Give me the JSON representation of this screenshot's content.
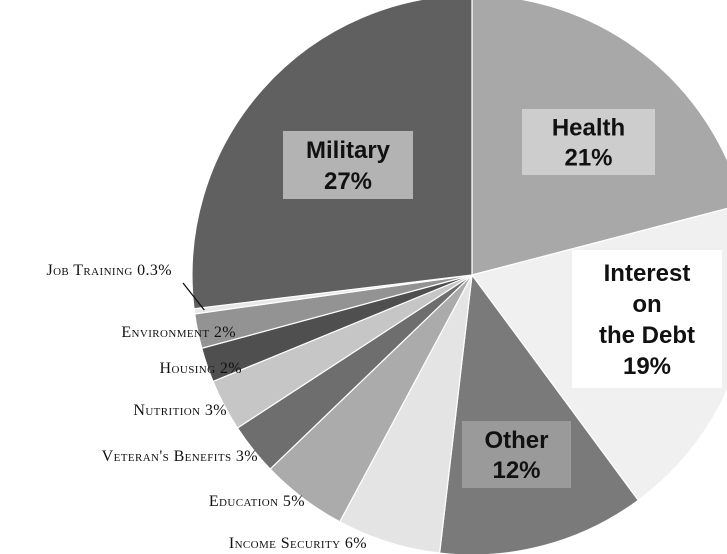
{
  "chart_data": {
    "type": "pie",
    "title": "",
    "slices": [
      {
        "category": "Health",
        "value_label": "21%",
        "value": 21,
        "color": "#a8a8a8"
      },
      {
        "category": "Interest on the Debt",
        "value_label": "19%",
        "value": 19,
        "color": "#f0f0f0"
      },
      {
        "category": "Other",
        "value_label": "12%",
        "value": 12,
        "color": "#7a7a7a"
      },
      {
        "category": "Income Security",
        "value_label": "6%",
        "value": 6,
        "color": "#e4e4e4"
      },
      {
        "category": "Education",
        "value_label": "5%",
        "value": 5,
        "color": "#ababab"
      },
      {
        "category": "Veteran's Benefits",
        "value_label": "3%",
        "value": 3,
        "color": "#6e6e6e"
      },
      {
        "category": "Nutrition",
        "value_label": "3%",
        "value": 3,
        "color": "#c6c6c6"
      },
      {
        "category": "Housing",
        "value_label": "2%",
        "value": 2,
        "color": "#4f4f4f"
      },
      {
        "category": "Environment",
        "value_label": "2%",
        "value": 2,
        "color": "#939393"
      },
      {
        "category": "Job Training",
        "value_label": "0.3%",
        "value": 0.3,
        "color": "#e8e8e8"
      },
      {
        "category": "Military",
        "value_label": "27%",
        "value": 27,
        "color": "#606060"
      }
    ],
    "inner_labels": [
      {
        "lines": [
          "Health",
          "21%"
        ],
        "box_color": "#cdcdcd",
        "text_color": "#111111"
      },
      {
        "lines": [
          "Interest",
          "on",
          "the Debt",
          "19%"
        ],
        "box_color": "#ffffff",
        "text_color": "#111111"
      },
      {
        "lines": [
          "Other",
          "12%"
        ],
        "box_color": "#9a9a9a",
        "text_color": "#111111"
      },
      {
        "lines": [
          "Military",
          "27%"
        ],
        "box_color": "#b3b3b3",
        "text_color": "#111111"
      }
    ],
    "outer_labels": [
      {
        "text": "Job Training 0.3%"
      },
      {
        "text": "Environment 2%"
      },
      {
        "text": "Housing  2%"
      },
      {
        "text": "Nutrition 3%"
      },
      {
        "text": "Veteran's Benefits 3%"
      },
      {
        "text": "Education  5%"
      },
      {
        "text": "Income Security 6%"
      }
    ]
  }
}
